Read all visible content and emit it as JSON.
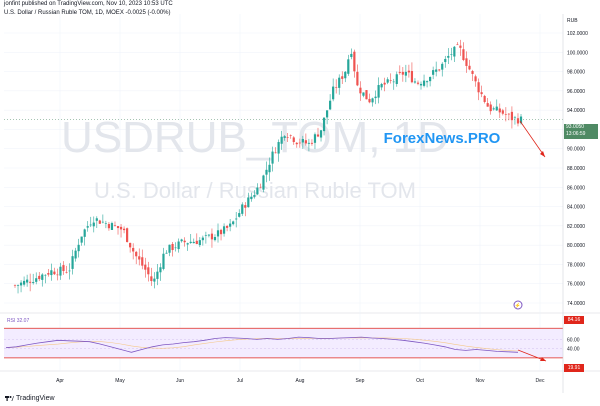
{
  "header": {
    "published": "jonfint published on TradingView.com, Nov 10, 2023 10:53 UTC",
    "symbol_line": "U.S. Dollar / Russian Ruble TOM, 1D, MOEX  -0.0025 (-0.00%)"
  },
  "watermark": {
    "ticker": "USDRUB_TOM, 1D",
    "name": "U.S. Dollar / Russian Ruble TOM",
    "brand": "ForexNews.PRO"
  },
  "currency_label": "RUB",
  "price_badge": {
    "value": "93.0050",
    "countdown": "13:06:59"
  },
  "rsi_label": "RSI 32.07",
  "rsi_badges": {
    "upper": "84.16",
    "lower": "19.91"
  },
  "footer": {
    "brand": "TradingView"
  },
  "colors": {
    "up": "#26a69a",
    "down": "#ef5350",
    "rsi": "#7e57c2",
    "brand": "#2196f3",
    "arrow": "#e0261b"
  },
  "chart_data": {
    "type": "candlestick",
    "title": "U.S. Dollar / Russian Ruble TOM, 1D, MOEX",
    "x_ticks": [
      "Apr",
      "May",
      "Jun",
      "Jul",
      "Aug",
      "Sep",
      "Oct",
      "Nov",
      "Dec"
    ],
    "y_ticks": [
      102,
      100,
      98,
      96,
      94,
      92,
      90,
      88,
      86,
      84,
      82,
      80,
      78,
      76,
      74
    ],
    "ylim": [
      73,
      103
    ],
    "close_path": [
      {
        "x": 0.0,
        "y": 75.8
      },
      {
        "x": 0.3,
        "y": 76.5
      },
      {
        "x": 0.6,
        "y": 77.3
      },
      {
        "x": 0.9,
        "y": 77.4
      },
      {
        "x": 1.1,
        "y": 81.0
      },
      {
        "x": 1.3,
        "y": 82.8
      },
      {
        "x": 1.5,
        "y": 82.3
      },
      {
        "x": 1.8,
        "y": 81.6
      },
      {
        "x": 2.0,
        "y": 79.0
      },
      {
        "x": 2.2,
        "y": 77.2
      },
      {
        "x": 2.3,
        "y": 76.0
      },
      {
        "x": 2.5,
        "y": 79.4
      },
      {
        "x": 2.8,
        "y": 80.3
      },
      {
        "x": 3.1,
        "y": 80.5
      },
      {
        "x": 3.4,
        "y": 81.2
      },
      {
        "x": 3.6,
        "y": 82.0
      },
      {
        "x": 3.8,
        "y": 84.0
      },
      {
        "x": 4.0,
        "y": 85.5
      },
      {
        "x": 4.1,
        "y": 86.5
      },
      {
        "x": 4.3,
        "y": 89.5
      },
      {
        "x": 4.5,
        "y": 91.8
      },
      {
        "x": 4.7,
        "y": 90.8
      },
      {
        "x": 4.9,
        "y": 90.5
      },
      {
        "x": 5.1,
        "y": 92.0
      },
      {
        "x": 5.3,
        "y": 96.0
      },
      {
        "x": 5.5,
        "y": 98.0
      },
      {
        "x": 5.6,
        "y": 100.5
      },
      {
        "x": 5.7,
        "y": 96.5
      },
      {
        "x": 5.9,
        "y": 95.0
      },
      {
        "x": 6.1,
        "y": 96.5
      },
      {
        "x": 6.3,
        "y": 97.0
      },
      {
        "x": 6.5,
        "y": 98.0
      },
      {
        "x": 6.7,
        "y": 96.8
      },
      {
        "x": 6.9,
        "y": 97.5
      },
      {
        "x": 7.1,
        "y": 98.5
      },
      {
        "x": 7.25,
        "y": 99.8
      },
      {
        "x": 7.4,
        "y": 100.5
      },
      {
        "x": 7.55,
        "y": 98.6
      },
      {
        "x": 7.7,
        "y": 96.5
      },
      {
        "x": 7.9,
        "y": 94.2
      },
      {
        "x": 8.1,
        "y": 93.8
      },
      {
        "x": 8.3,
        "y": 93.1
      },
      {
        "x": 8.45,
        "y": 93.0
      }
    ],
    "rsi": {
      "value": 32.07,
      "upper_band": 84.16,
      "lower_band": 19.91,
      "y_ticks": [
        60,
        40
      ],
      "values": [
        42,
        44,
        48,
        52,
        55,
        58,
        57,
        56,
        55,
        50,
        44,
        38,
        32,
        38,
        44,
        48,
        50,
        53,
        55,
        58,
        62,
        64,
        63,
        62,
        60,
        62,
        60,
        62,
        65,
        64,
        62,
        62,
        63,
        64,
        65,
        63,
        62,
        60,
        58,
        55,
        52,
        48,
        44,
        38,
        36,
        38,
        36,
        34,
        33,
        32
      ]
    }
  }
}
